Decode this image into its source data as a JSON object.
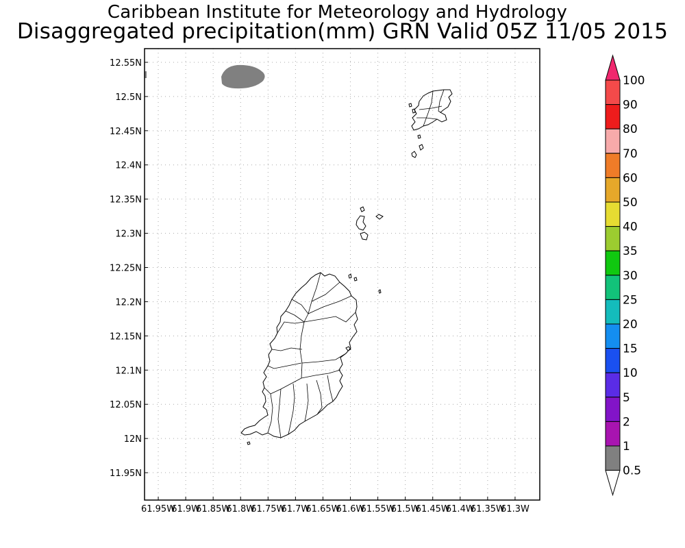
{
  "titles": {
    "line1": "Caribbean Institute for Meteorology and Hydrology",
    "line2": "Disaggregated precipitation(mm) GRN Valid 05Z 11/05 2015"
  },
  "map": {
    "lon_range": [
      -61.975,
      -61.255
    ],
    "lat_range": [
      11.91,
      12.57
    ],
    "lat_ticks": [
      {
        "value": 12.55,
        "label": "12.55N"
      },
      {
        "value": 12.5,
        "label": "12.5N"
      },
      {
        "value": 12.45,
        "label": "12.45N"
      },
      {
        "value": 12.4,
        "label": "12.4N"
      },
      {
        "value": 12.35,
        "label": "12.35N"
      },
      {
        "value": 12.3,
        "label": "12.3N"
      },
      {
        "value": 12.25,
        "label": "12.25N"
      },
      {
        "value": 12.2,
        "label": "12.2N"
      },
      {
        "value": 12.15,
        "label": "12.15N"
      },
      {
        "value": 12.1,
        "label": "12.1N"
      },
      {
        "value": 12.05,
        "label": "12.05N"
      },
      {
        "value": 12.0,
        "label": "12N"
      },
      {
        "value": 11.95,
        "label": "11.95N"
      }
    ],
    "lon_ticks": [
      {
        "value": -61.95,
        "label": "61.95W"
      },
      {
        "value": -61.9,
        "label": "61.9W"
      },
      {
        "value": -61.85,
        "label": "61.85W"
      },
      {
        "value": -61.8,
        "label": "61.8W"
      },
      {
        "value": -61.75,
        "label": "61.75W"
      },
      {
        "value": -61.7,
        "label": "61.7W"
      },
      {
        "value": -61.65,
        "label": "61.65W"
      },
      {
        "value": -61.6,
        "label": "61.6W"
      },
      {
        "value": -61.55,
        "label": "61.55W"
      },
      {
        "value": -61.5,
        "label": "61.5W"
      },
      {
        "value": -61.45,
        "label": "61.45W"
      },
      {
        "value": -61.4,
        "label": "61.4W"
      },
      {
        "value": -61.35,
        "label": "61.35W"
      },
      {
        "value": -61.3,
        "label": "61.3W"
      }
    ],
    "grid": true,
    "precip_cells": [
      {
        "lon": -61.8,
        "lat": 12.518,
        "class": "0.5-1",
        "color": "#808080"
      }
    ]
  },
  "legend": {
    "labels": [
      "100",
      "90",
      "80",
      "70",
      "60",
      "50",
      "40",
      "35",
      "30",
      "25",
      "20",
      "15",
      "10",
      "5",
      "2",
      "1",
      "0.5"
    ],
    "colors": [
      "#f0286e",
      "#f44a4a",
      "#ee1c1c",
      "#f7aaaa",
      "#ef7c28",
      "#e6a82a",
      "#e6dc32",
      "#9ccc30",
      "#10c810",
      "#12c27a",
      "#14bcbc",
      "#148ef0",
      "#1a50f0",
      "#5a2ce6",
      "#8214c8",
      "#a814b0",
      "#808080"
    ]
  }
}
